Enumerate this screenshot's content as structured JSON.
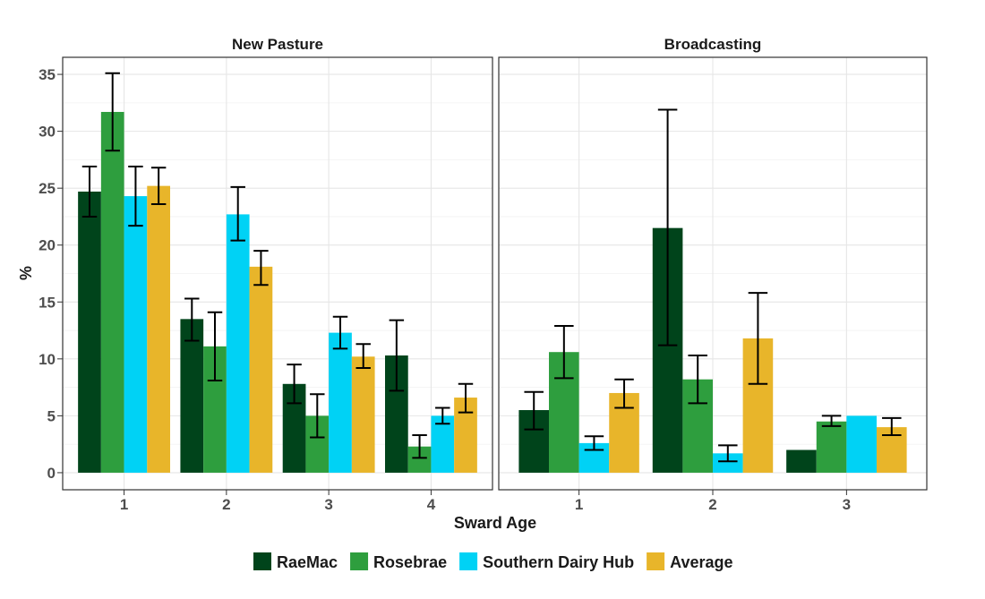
{
  "chart_data": {
    "type": "bar",
    "ylabel": "%",
    "xlabel": "Sward Age",
    "ylim": [
      -1.5,
      36.5
    ],
    "yticks": [
      0,
      5,
      10,
      15,
      20,
      25,
      30,
      35
    ],
    "grid": true,
    "legend_position": "bottom",
    "legend": [
      {
        "name": "RaeMac",
        "color": "#00441b"
      },
      {
        "name": "Rosebrae",
        "color": "#2e9e3e"
      },
      {
        "name": "Southern Dairy Hub",
        "color": "#00d2f5"
      },
      {
        "name": "Average",
        "color": "#e8b52a"
      }
    ],
    "panels": [
      {
        "title": "New Pasture",
        "categories": [
          "1",
          "2",
          "3",
          "4"
        ],
        "series": [
          {
            "name": "RaeMac",
            "values": [
              24.7,
              13.5,
              7.8,
              10.3
            ],
            "err_low": [
              22.5,
              11.6,
              6.1,
              7.2
            ],
            "err_high": [
              26.9,
              15.3,
              9.5,
              13.4
            ]
          },
          {
            "name": "Rosebrae",
            "values": [
              31.7,
              11.1,
              5.0,
              2.3
            ],
            "err_low": [
              28.3,
              8.1,
              3.1,
              1.3
            ],
            "err_high": [
              35.1,
              14.1,
              6.9,
              3.3
            ]
          },
          {
            "name": "Southern Dairy Hub",
            "values": [
              24.3,
              22.7,
              12.3,
              5.0
            ],
            "err_low": [
              21.7,
              20.4,
              10.9,
              4.3
            ],
            "err_high": [
              26.9,
              25.1,
              13.7,
              5.7
            ]
          },
          {
            "name": "Average",
            "values": [
              25.2,
              18.1,
              10.2,
              6.6
            ],
            "err_low": [
              23.6,
              16.5,
              9.2,
              5.3
            ],
            "err_high": [
              26.8,
              19.5,
              11.3,
              7.8
            ]
          }
        ]
      },
      {
        "title": "Broadcasting",
        "categories": [
          "1",
          "2",
          "3"
        ],
        "series": [
          {
            "name": "RaeMac",
            "values": [
              5.5,
              21.5,
              2.0
            ],
            "err_low": [
              3.8,
              11.2,
              null
            ],
            "err_high": [
              7.1,
              31.9,
              null
            ]
          },
          {
            "name": "Rosebrae",
            "values": [
              10.6,
              8.2,
              4.5
            ],
            "err_low": [
              8.3,
              6.1,
              4.1
            ],
            "err_high": [
              12.9,
              10.3,
              5.0
            ]
          },
          {
            "name": "Southern Dairy Hub",
            "values": [
              2.6,
              1.7,
              5.0
            ],
            "err_low": [
              2.0,
              1.0,
              null
            ],
            "err_high": [
              3.2,
              2.4,
              null
            ]
          },
          {
            "name": "Average",
            "values": [
              7.0,
              11.8,
              4.0
            ],
            "err_low": [
              5.7,
              7.8,
              3.3
            ],
            "err_high": [
              8.2,
              15.8,
              4.8
            ]
          }
        ]
      }
    ]
  }
}
